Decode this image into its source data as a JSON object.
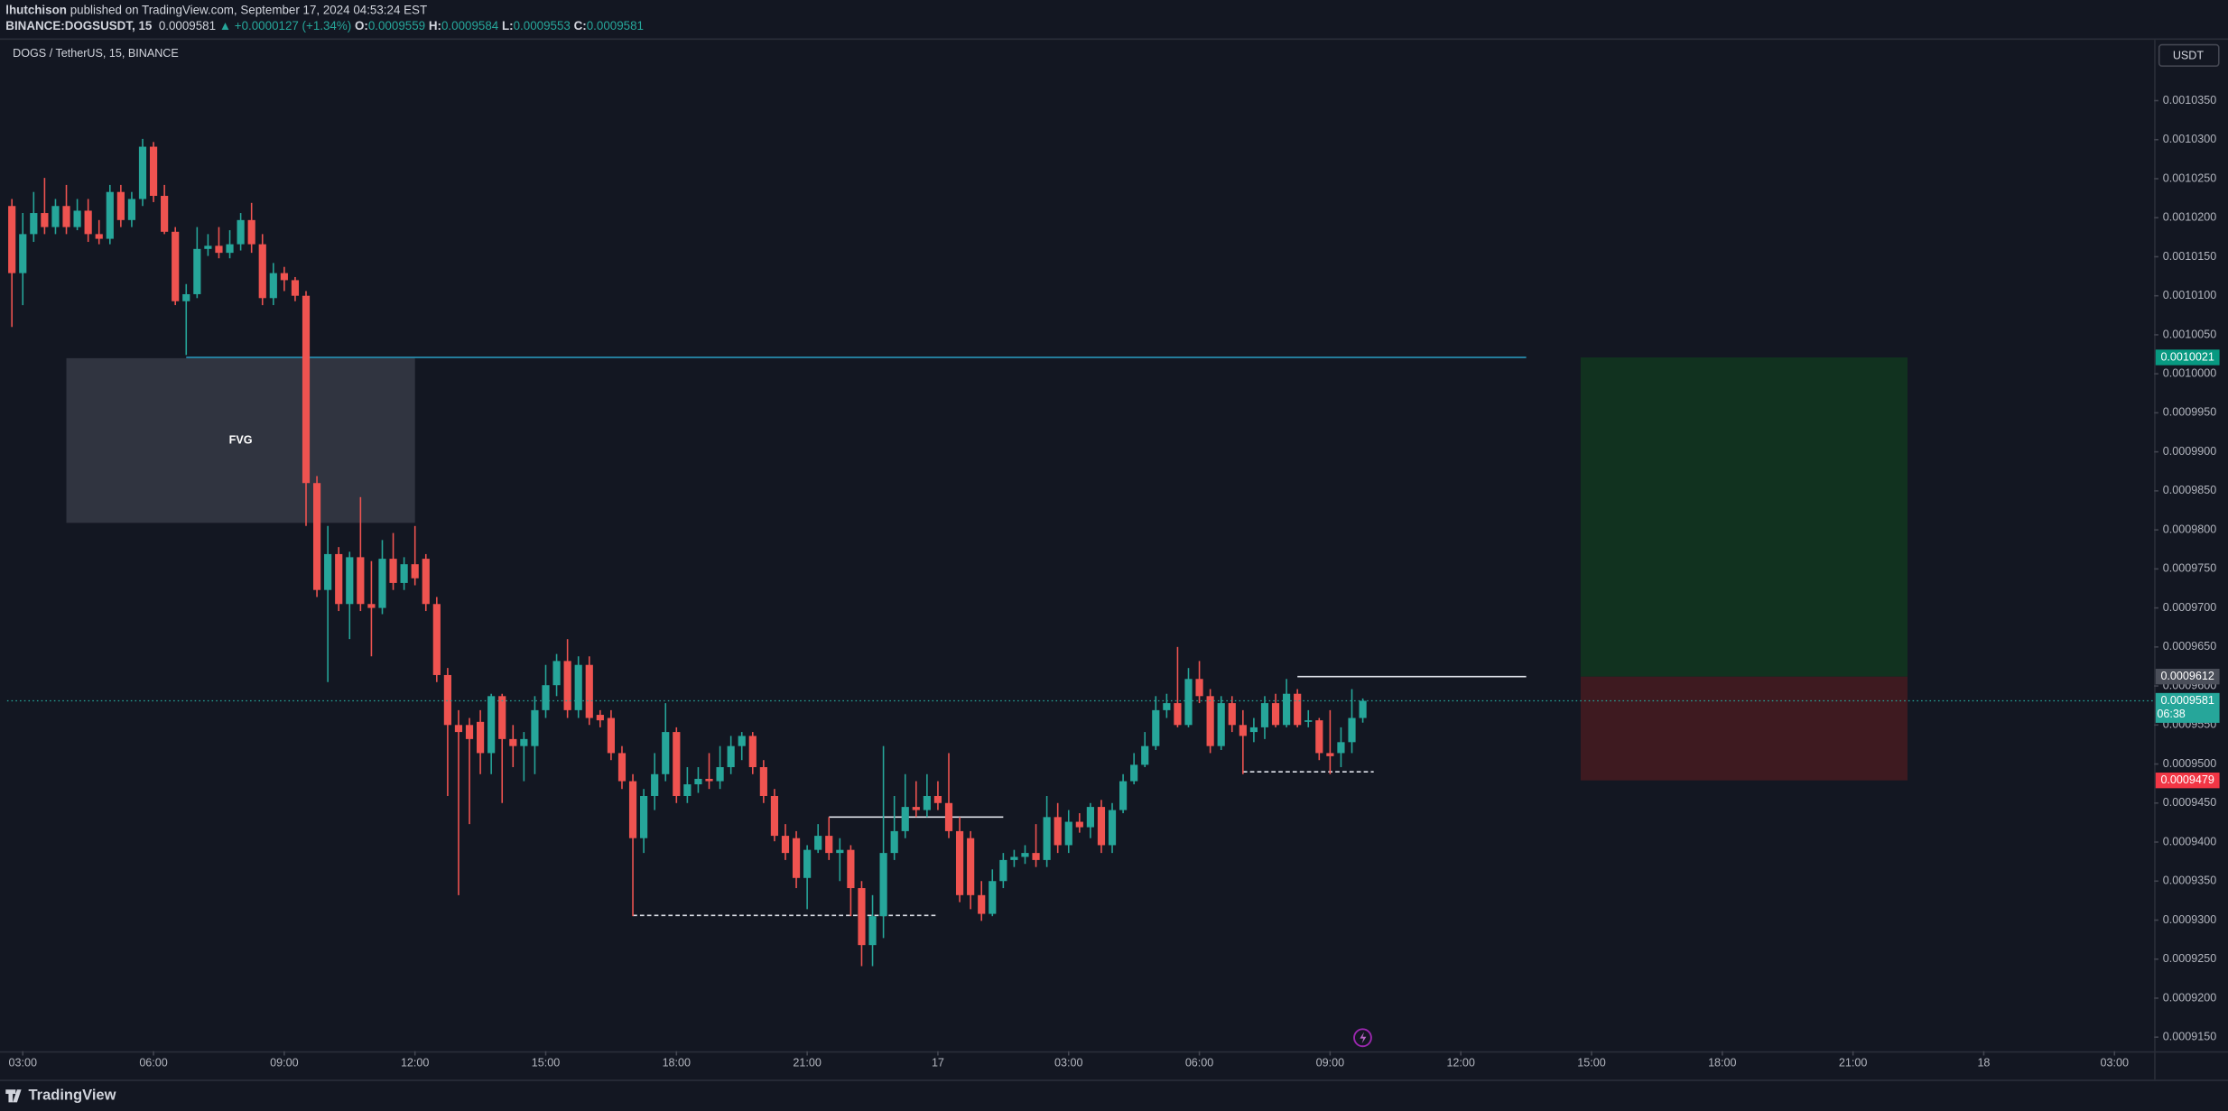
{
  "header": {
    "author": "lhutchison",
    "published": "published on TradingView.com, September 17, 2024 04:53:24 EST",
    "symbol": "BINANCE:DOGSUSDT, 15",
    "last": 0.0009581,
    "change": "▲ +0.0000127 (+1.34%)",
    "ohlc": [
      {
        "label": "O:",
        "value": 0.0009559
      },
      {
        "label": "H:",
        "value": 0.0009584
      },
      {
        "label": "L:",
        "value": 0.0009553
      },
      {
        "label": "C:",
        "value": 0.0009581
      }
    ]
  },
  "footer": {
    "brand": "TradingView"
  },
  "chart_data": {
    "type": "candlestick",
    "title": "DOGS / TetherUS, 15, BINANCE",
    "currency": "USDT",
    "countdown": "06:38",
    "up_color": "#26a69a",
    "down_color": "#ef5350",
    "xlim": [
      2.64,
      51.91
    ],
    "ylim": [
      0.0009132,
      0.0010428
    ],
    "xticks": [
      {
        "value": 3,
        "label": "03:00"
      },
      {
        "value": 6,
        "label": "06:00"
      },
      {
        "value": 9,
        "label": "09:00"
      },
      {
        "value": 12,
        "label": "12:00"
      },
      {
        "value": 15,
        "label": "15:00"
      },
      {
        "value": 18,
        "label": "18:00"
      },
      {
        "value": 21,
        "label": "21:00"
      },
      {
        "value": 24,
        "label": "17"
      },
      {
        "value": 27,
        "label": "03:00"
      },
      {
        "value": 30,
        "label": "06:00"
      },
      {
        "value": 33,
        "label": "09:00"
      },
      {
        "value": 36,
        "label": "12:00"
      },
      {
        "value": 39,
        "label": "15:00"
      },
      {
        "value": 42,
        "label": "18:00"
      },
      {
        "value": 45,
        "label": "21:00"
      },
      {
        "value": 48,
        "label": "18"
      },
      {
        "value": 51,
        "label": "03:00"
      }
    ],
    "yticks": [
      {
        "value": 0.001035,
        "label": "0.0010350"
      },
      {
        "value": 0.00103,
        "label": "0.0010300"
      },
      {
        "value": 0.001025,
        "label": "0.0010250"
      },
      {
        "value": 0.00102,
        "label": "0.0010200"
      },
      {
        "value": 0.001015,
        "label": "0.0010150"
      },
      {
        "value": 0.00101,
        "label": "0.0010100"
      },
      {
        "value": 0.001005,
        "label": "0.0010050"
      },
      {
        "value": 0.001,
        "label": "0.0010000"
      },
      {
        "value": 0.000995,
        "label": "0.0009950"
      },
      {
        "value": 0.00099,
        "label": "0.0009900"
      },
      {
        "value": 0.000985,
        "label": "0.0009850"
      },
      {
        "value": 0.00098,
        "label": "0.0009800"
      },
      {
        "value": 0.000975,
        "label": "0.0009750"
      },
      {
        "value": 0.00097,
        "label": "0.0009700"
      },
      {
        "value": 0.000965,
        "label": "0.0009650"
      },
      {
        "value": 0.00096,
        "label": "0.0009600"
      },
      {
        "value": 0.000955,
        "label": "0.0009550"
      },
      {
        "value": 0.00095,
        "label": "0.0009500"
      },
      {
        "value": 0.000945,
        "label": "0.0009450"
      },
      {
        "value": 0.00094,
        "label": "0.0009400"
      },
      {
        "value": 0.000935,
        "label": "0.0009350"
      },
      {
        "value": 0.00093,
        "label": "0.0009300"
      },
      {
        "value": 0.000925,
        "label": "0.0009250"
      },
      {
        "value": 0.00092,
        "label": "0.0009200"
      },
      {
        "value": 0.000915,
        "label": "0.0009150"
      }
    ],
    "x": [
      2.75,
      3,
      3.25,
      3.5,
      3.75,
      4,
      4.25,
      4.5,
      4.75,
      5,
      5.25,
      5.5,
      5.75,
      6,
      6.25,
      6.5,
      6.75,
      7,
      7.25,
      7.5,
      7.75,
      8,
      8.25,
      8.5,
      8.75,
      9,
      9.25,
      9.5,
      9.75,
      10,
      10.25,
      10.5,
      10.75,
      11,
      11.25,
      11.5,
      11.75,
      12,
      12.25,
      12.5,
      12.75,
      13,
      13.25,
      13.5,
      13.75,
      14,
      14.25,
      14.5,
      14.75,
      15,
      15.25,
      15.5,
      15.75,
      16,
      16.25,
      16.5,
      16.75,
      17,
      17.25,
      17.5,
      17.75,
      18,
      18.25,
      18.5,
      18.75,
      19,
      19.25,
      19.5,
      19.75,
      20,
      20.25,
      20.5,
      20.75,
      21,
      21.25,
      21.5,
      21.75,
      22,
      22.25,
      22.5,
      22.75,
      23,
      23.25,
      23.5,
      23.75,
      24,
      24.25,
      24.5,
      24.75,
      25,
      25.25,
      25.5,
      25.75,
      26,
      26.25,
      26.5,
      26.75,
      27,
      27.25,
      27.5,
      27.75,
      28,
      28.25,
      28.5,
      28.75,
      29,
      29.25,
      29.5,
      29.75,
      30,
      30.25,
      30.5,
      30.75,
      31,
      31.25,
      31.5,
      31.75,
      32,
      32.25,
      32.5,
      32.75,
      33,
      33.25,
      33.5,
      33.75
    ],
    "open": [
      0.0010215,
      0.0010129,
      0.0010179,
      0.0010206,
      0.0010188,
      0.0010215,
      0.0010188,
      0.0010209,
      0.0010179,
      0.0010173,
      0.0010233,
      0.0010197,
      0.0010224,
      0.0010291,
      0.0010228,
      0.0010182,
      0.0010093,
      0.0010102,
      0.001016,
      0.0010164,
      0.0010155,
      0.0010166,
      0.0010197,
      0.0010166,
      0.0010097,
      0.0010129,
      0.001012,
      0.00101,
      0.000986,
      0.0009723,
      0.0009769,
      0.0009705,
      0.0009765,
      0.0009705,
      0.00097,
      0.0009763,
      0.0009732,
      0.0009756,
      0.0009763,
      0.0009705,
      0.0009614,
      0.000955,
      0.000955,
      0.0009554,
      0.0009514,
      0.0009587,
      0.0009532,
      0.0009523,
      0.0009523,
      0.0009569,
      0.0009601,
      0.0009632,
      0.0009569,
      0.0009627,
      0.0009563,
      0.0009559,
      0.0009514,
      0.0009478,
      0.0009405,
      0.0009459,
      0.0009487,
      0.0009541,
      0.0009459,
      0.0009474,
      0.0009481,
      0.0009478,
      0.0009496,
      0.0009523,
      0.0009536,
      0.0009496,
      0.0009459,
      0.0009408,
      0.0009405,
      0.0009354,
      0.000939,
      0.0009408,
      0.0009386,
      0.000939,
      0.0009341,
      0.0009268,
      0.0009305,
      0.0009386,
      0.0009414,
      0.0009445,
      0.0009441,
      0.0009459,
      0.000945,
      0.0009414,
      0.0009405,
      0.0009332,
      0.0009308,
      0.000935,
      0.0009377,
      0.0009381,
      0.0009386,
      0.0009377,
      0.0009432,
      0.0009396,
      0.0009426,
      0.0009419,
      0.0009445,
      0.0009396,
      0.0009441,
      0.0009478,
      0.0009499,
      0.0009523,
      0.0009569,
      0.0009578,
      0.000955,
      0.0009609,
      0.0009587,
      0.0009523,
      0.0009578,
      0.000955,
      0.0009541,
      0.0009547,
      0.0009578,
      0.000955,
      0.000959,
      0.0009554,
      0.0009556,
      0.0009514,
      0.0009514,
      0.0009528,
      0.0009559
    ],
    "high": [
      0.0010224,
      0.0010206,
      0.0010233,
      0.0010251,
      0.0010224,
      0.0010242,
      0.0010224,
      0.0010224,
      0.0010197,
      0.0010242,
      0.0010242,
      0.0010233,
      0.0010301,
      0.0010297,
      0.0010242,
      0.0010188,
      0.0010115,
      0.0010188,
      0.0010179,
      0.0010188,
      0.0010184,
      0.0010206,
      0.0010219,
      0.0010179,
      0.0010142,
      0.0010137,
      0.0010124,
      0.0010106,
      0.0009869,
      0.0009805,
      0.0009778,
      0.0009772,
      0.0009842,
      0.000976,
      0.0009787,
      0.0009796,
      0.0009765,
      0.0009805,
      0.0009769,
      0.0009714,
      0.0009623,
      0.0009569,
      0.0009559,
      0.0009569,
      0.000959,
      0.000959,
      0.000955,
      0.0009541,
      0.0009587,
      0.0009627,
      0.0009641,
      0.000966,
      0.0009638,
      0.0009638,
      0.0009569,
      0.0009569,
      0.0009523,
      0.0009487,
      0.0009468,
      0.0009514,
      0.0009578,
      0.0009547,
      0.0009496,
      0.0009496,
      0.0009514,
      0.0009523,
      0.0009536,
      0.0009541,
      0.0009541,
      0.0009505,
      0.0009468,
      0.0009423,
      0.0009414,
      0.0009396,
      0.0009423,
      0.0009432,
      0.0009405,
      0.0009396,
      0.000935,
      0.0009332,
      0.0009523,
      0.0009459,
      0.0009487,
      0.0009478,
      0.0009487,
      0.0009478,
      0.0009514,
      0.0009432,
      0.0009414,
      0.000935,
      0.0009365,
      0.0009386,
      0.000939,
      0.0009396,
      0.0009423,
      0.0009459,
      0.000945,
      0.0009441,
      0.0009437,
      0.000945,
      0.0009454,
      0.000945,
      0.0009487,
      0.0009514,
      0.0009541,
      0.0009587,
      0.000959,
      0.000965,
      0.0009623,
      0.0009632,
      0.0009596,
      0.0009587,
      0.0009587,
      0.0009569,
      0.0009559,
      0.0009587,
      0.000959,
      0.0009609,
      0.0009596,
      0.0009569,
      0.0009559,
      0.0009569,
      0.0009547,
      0.0009596,
      0.0009584
    ],
    "low": [
      0.001006,
      0.0010088,
      0.0010169,
      0.0010179,
      0.0010179,
      0.0010179,
      0.0010184,
      0.0010169,
      0.0010166,
      0.0010166,
      0.0010188,
      0.0010188,
      0.0010215,
      0.001022,
      0.0010179,
      0.0010088,
      0.0010024,
      0.0010097,
      0.0010151,
      0.0010148,
      0.0010148,
      0.0010158,
      0.0010155,
      0.0010088,
      0.0010088,
      0.0010106,
      0.0010093,
      0.0009805,
      0.0009714,
      0.0009605,
      0.0009696,
      0.000966,
      0.0009696,
      0.0009638,
      0.0009692,
      0.0009723,
      0.0009723,
      0.0009729,
      0.0009696,
      0.0009605,
      0.0009459,
      0.0009332,
      0.0009423,
      0.0009487,
      0.0009487,
      0.000945,
      0.0009496,
      0.0009478,
      0.0009487,
      0.0009559,
      0.0009587,
      0.0009559,
      0.0009559,
      0.000955,
      0.0009547,
      0.0009505,
      0.0009468,
      0.0009305,
      0.0009386,
      0.0009441,
      0.0009478,
      0.000945,
      0.000945,
      0.0009463,
      0.0009468,
      0.0009468,
      0.0009487,
      0.0009505,
      0.0009487,
      0.000945,
      0.0009401,
      0.0009377,
      0.0009341,
      0.0009314,
      0.0009386,
      0.0009377,
      0.000935,
      0.0009305,
      0.0009241,
      0.0009241,
      0.0009277,
      0.0009377,
      0.0009405,
      0.0009432,
      0.0009432,
      0.0009441,
      0.0009405,
      0.0009323,
      0.0009314,
      0.0009299,
      0.0009305,
      0.0009341,
      0.0009368,
      0.0009372,
      0.0009368,
      0.0009368,
      0.0009386,
      0.0009386,
      0.0009412,
      0.0009405,
      0.0009386,
      0.0009386,
      0.0009437,
      0.0009474,
      0.0009496,
      0.0009518,
      0.0009559,
      0.0009547,
      0.0009547,
      0.0009578,
      0.0009514,
      0.0009518,
      0.0009541,
      0.0009487,
      0.0009528,
      0.0009532,
      0.0009547,
      0.0009547,
      0.0009547,
      0.0009547,
      0.0009505,
      0.0009487,
      0.0009496,
      0.0009514,
      0.0009553
    ],
    "close": [
      0.0010129,
      0.0010179,
      0.0010206,
      0.0010188,
      0.0010215,
      0.0010188,
      0.0010209,
      0.0010179,
      0.0010173,
      0.0010233,
      0.0010197,
      0.0010224,
      0.0010291,
      0.0010228,
      0.0010182,
      0.0010093,
      0.0010102,
      0.001016,
      0.0010164,
      0.0010155,
      0.0010166,
      0.0010197,
      0.0010166,
      0.0010097,
      0.0010129,
      0.001012,
      0.00101,
      0.000986,
      0.0009723,
      0.0009769,
      0.0009705,
      0.0009765,
      0.0009705,
      0.00097,
      0.0009763,
      0.0009732,
      0.0009756,
      0.0009738,
      0.0009705,
      0.0009614,
      0.000955,
      0.0009541,
      0.0009532,
      0.0009514,
      0.0009587,
      0.0009532,
      0.0009523,
      0.0009532,
      0.0009569,
      0.0009601,
      0.0009632,
      0.0009569,
      0.0009627,
      0.0009559,
      0.0009556,
      0.0009514,
      0.0009478,
      0.0009405,
      0.0009459,
      0.0009487,
      0.0009541,
      0.0009459,
      0.0009474,
      0.0009481,
      0.0009478,
      0.0009496,
      0.0009523,
      0.0009536,
      0.0009496,
      0.0009459,
      0.0009408,
      0.0009386,
      0.0009354,
      0.000939,
      0.0009408,
      0.0009386,
      0.000939,
      0.0009341,
      0.0009268,
      0.0009305,
      0.0009386,
      0.0009414,
      0.0009445,
      0.0009441,
      0.0009459,
      0.000945,
      0.0009414,
      0.0009332,
      0.0009332,
      0.0009308,
      0.000935,
      0.0009377,
      0.0009381,
      0.0009386,
      0.0009377,
      0.0009432,
      0.0009396,
      0.0009426,
      0.0009419,
      0.0009445,
      0.0009396,
      0.0009441,
      0.0009478,
      0.0009499,
      0.0009523,
      0.0009569,
      0.0009578,
      0.000955,
      0.0009609,
      0.0009587,
      0.0009523,
      0.0009578,
      0.000955,
      0.0009536,
      0.0009547,
      0.0009578,
      0.000955,
      0.000959,
      0.000955,
      0.0009556,
      0.0009514,
      0.000951,
      0.0009528,
      0.0009559,
      0.0009581
    ],
    "fvg": {
      "label": "FVG",
      "x": [
        4,
        12
      ],
      "y": [
        0.0009809,
        0.001002
      ]
    },
    "levels": [
      {
        "x": [
          6.75,
          37.5
        ],
        "y": 0.0010021,
        "color": "#2a9fc4",
        "style": "solid"
      },
      {
        "x": [
          32.25,
          37.5
        ],
        "y": 0.0009612,
        "color": "#e0e3eb",
        "style": "solid"
      },
      {
        "x": [
          21.5,
          25.5
        ],
        "y": 0.0009432,
        "color": "#e0e3eb",
        "style": "solid"
      },
      {
        "x": [
          17,
          24
        ],
        "y": 0.0009306,
        "color": "#e0e3eb",
        "style": "dashed"
      },
      {
        "x": [
          31,
          34
        ],
        "y": 0.000949,
        "color": "#e0e3eb",
        "style": "dashed"
      }
    ],
    "position": {
      "x": [
        38.75,
        46.25
      ],
      "entry": 0.0009612,
      "target": 0.0010021,
      "stop": 0.0009479
    }
  }
}
